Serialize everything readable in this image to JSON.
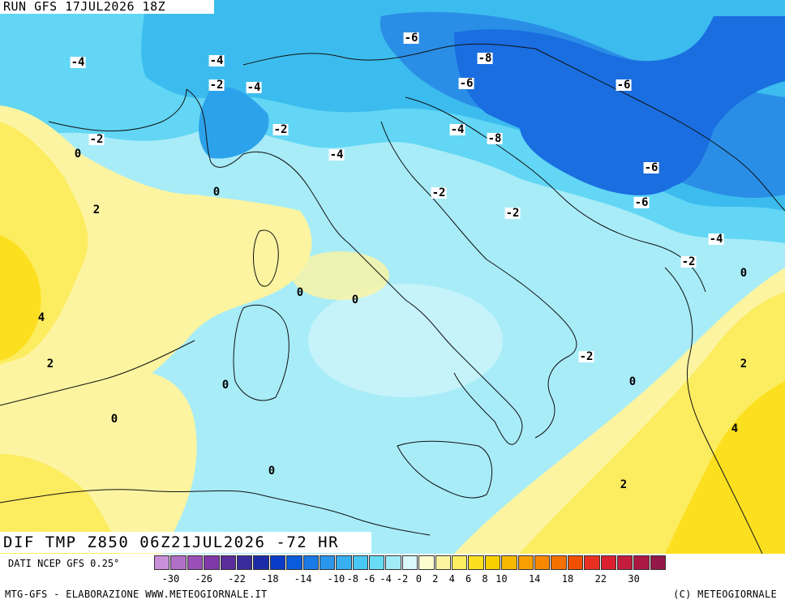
{
  "header": {
    "run_title": "RUN GFS 17JUL2026 18Z",
    "product": "DIF TMP Z850 06Z21JUL2026 -72 HR"
  },
  "footer": {
    "data_credit": "DATI NCEP GFS 0.25°",
    "elaboration": "MTG-GFS - ELABORAZIONE WWW.METEOGIORNALE.IT",
    "copyright": "(C) METEOGIORNALE"
  },
  "legend": {
    "colors": [
      "#c890d8",
      "#b070c8",
      "#9a50b8",
      "#8038a8",
      "#5a2c9c",
      "#3a2c9c",
      "#1c2ca8",
      "#0a3cc8",
      "#0a5cdc",
      "#1a7ae6",
      "#2a96ec",
      "#36b0f0",
      "#48c8f2",
      "#68dcf4",
      "#a0ecf6",
      "#d8f8fa",
      "#fcfcd0",
      "#fcf4a0",
      "#fcec60",
      "#fce020",
      "#f8d000",
      "#f8b800",
      "#f8a000",
      "#f88800",
      "#f47000",
      "#f05000",
      "#e83020",
      "#dc2030",
      "#c41c3c",
      "#ac1a44",
      "#941848"
    ],
    "tick_labels": [
      "-30",
      "-26",
      "-22",
      "-18",
      "-14",
      "-10",
      "-8",
      "-6",
      "-4",
      "-2",
      "0",
      "2",
      "4",
      "6",
      "8",
      "10",
      "14",
      "18",
      "22",
      "30"
    ]
  },
  "map_labels": [
    {
      "text": "-4",
      "bg": true
    },
    {
      "text": "-4",
      "bg": true
    },
    {
      "text": "-6",
      "bg": true
    },
    {
      "text": "-8",
      "bg": true
    },
    {
      "text": "-2",
      "bg": true
    },
    {
      "text": "-4",
      "bg": true
    },
    {
      "text": "-6",
      "bg": true
    },
    {
      "text": "-6",
      "bg": true
    },
    {
      "text": "-2",
      "bg": true
    },
    {
      "text": "-2",
      "bg": true
    },
    {
      "text": "-4",
      "bg": true
    },
    {
      "text": "-8",
      "bg": true
    },
    {
      "text": "0",
      "bg": false
    },
    {
      "text": "-4",
      "bg": true
    },
    {
      "text": "-6",
      "bg": true
    },
    {
      "text": "0",
      "bg": false
    },
    {
      "text": "-2",
      "bg": true
    },
    {
      "text": "2",
      "bg": false
    },
    {
      "text": "-2",
      "bg": true
    },
    {
      "text": "-6",
      "bg": true
    },
    {
      "text": "-4",
      "bg": true
    },
    {
      "text": "-2",
      "bg": true
    },
    {
      "text": "0",
      "bg": false
    },
    {
      "text": "0",
      "bg": false
    },
    {
      "text": "0",
      "bg": false
    },
    {
      "text": "4",
      "bg": false
    },
    {
      "text": "2",
      "bg": false
    },
    {
      "text": "-2",
      "bg": true
    },
    {
      "text": "0",
      "bg": false
    },
    {
      "text": "2",
      "bg": false
    },
    {
      "text": "0",
      "bg": false
    },
    {
      "text": "0",
      "bg": false
    },
    {
      "text": "4",
      "bg": false
    },
    {
      "text": "0",
      "bg": false
    },
    {
      "text": "2",
      "bg": false
    }
  ]
}
